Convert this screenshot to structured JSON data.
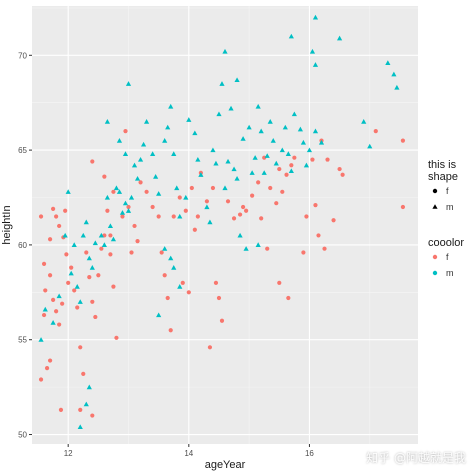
{
  "chart_data": {
    "type": "scatter",
    "xlabel": "ageYear",
    "ylabel": "heightIn",
    "xlim": [
      11.4,
      17.8
    ],
    "ylim": [
      49.5,
      72.6
    ],
    "x_ticks": [
      12,
      14,
      16
    ],
    "y_ticks": [
      50,
      55,
      60,
      65,
      70
    ],
    "grid": true,
    "background": "#EBEBEB",
    "legend_shape": {
      "title": "this is\nshape",
      "entries": [
        {
          "label": "f",
          "shape": "circle"
        },
        {
          "label": "m",
          "shape": "triangle"
        }
      ]
    },
    "legend_color": {
      "title": "cooolor",
      "entries": [
        {
          "label": "f",
          "color": "#F8766D"
        },
        {
          "label": "m",
          "color": "#00BFC4"
        }
      ]
    },
    "series": [
      {
        "name": "f",
        "shape": "circle",
        "color": "#F8766D",
        "points": [
          [
            11.55,
            52.9
          ],
          [
            11.65,
            53.5
          ],
          [
            11.7,
            53.9
          ],
          [
            11.6,
            56.3
          ],
          [
            11.62,
            57.6
          ],
          [
            11.55,
            61.5
          ],
          [
            11.7,
            60.3
          ],
          [
            11.75,
            61.9
          ],
          [
            11.8,
            61.5
          ],
          [
            11.85,
            61.0
          ],
          [
            11.6,
            59.0
          ],
          [
            11.7,
            58.4
          ],
          [
            11.75,
            57.1
          ],
          [
            11.8,
            56.5
          ],
          [
            11.85,
            55.8
          ],
          [
            11.9,
            56.9
          ],
          [
            11.95,
            61.8
          ],
          [
            11.92,
            60.4
          ],
          [
            11.97,
            59.5
          ],
          [
            12.0,
            58.0
          ],
          [
            11.88,
            51.3
          ],
          [
            12.05,
            58.8
          ],
          [
            12.1,
            57.6
          ],
          [
            12.15,
            56.7
          ],
          [
            12.2,
            54.6
          ],
          [
            12.25,
            53.2
          ],
          [
            12.3,
            59.6
          ],
          [
            12.35,
            58.3
          ],
          [
            12.4,
            57.0
          ],
          [
            12.45,
            56.2
          ],
          [
            12.5,
            58.4
          ],
          [
            12.55,
            59.8
          ],
          [
            12.6,
            60.5
          ],
          [
            12.65,
            61.8
          ],
          [
            12.7,
            59.5
          ],
          [
            12.75,
            57.8
          ],
          [
            12.8,
            55.1
          ],
          [
            12.4,
            64.4
          ],
          [
            12.6,
            63.6
          ],
          [
            12.75,
            62.8
          ],
          [
            12.9,
            61.5
          ],
          [
            13.0,
            62.0
          ],
          [
            13.05,
            59.6
          ],
          [
            12.2,
            51.3
          ],
          [
            12.4,
            51.0
          ],
          [
            12.95,
            66.0
          ],
          [
            13.1,
            61.0
          ],
          [
            13.15,
            60.2
          ],
          [
            13.2,
            63.3
          ],
          [
            13.3,
            62.8
          ],
          [
            13.4,
            62.0
          ],
          [
            13.5,
            61.5
          ],
          [
            13.55,
            59.6
          ],
          [
            13.6,
            58.4
          ],
          [
            13.65,
            57.2
          ],
          [
            13.7,
            55.5
          ],
          [
            13.75,
            61.5
          ],
          [
            13.85,
            62.5
          ],
          [
            13.95,
            61.8
          ],
          [
            14.05,
            63.0
          ],
          [
            14.1,
            60.8
          ],
          [
            14.15,
            61.5
          ],
          [
            14.3,
            62.3
          ],
          [
            14.4,
            63.0
          ],
          [
            14.45,
            58.0
          ],
          [
            14.5,
            57.2
          ],
          [
            14.55,
            56.0
          ],
          [
            14.35,
            54.6
          ],
          [
            14.65,
            62.3
          ],
          [
            14.75,
            61.4
          ],
          [
            14.85,
            61.6
          ],
          [
            14.9,
            62.0
          ],
          [
            14.95,
            61.8
          ],
          [
            15.05,
            62.6
          ],
          [
            15.15,
            63.3
          ],
          [
            15.2,
            61.4
          ],
          [
            15.25,
            64.6
          ],
          [
            15.35,
            63.0
          ],
          [
            15.45,
            62.2
          ],
          [
            15.5,
            64.0
          ],
          [
            15.55,
            62.8
          ],
          [
            15.62,
            63.7
          ],
          [
            15.7,
            64.2
          ],
          [
            15.75,
            64.6
          ],
          [
            15.3,
            59.8
          ],
          [
            15.5,
            58.0
          ],
          [
            15.65,
            57.2
          ],
          [
            15.9,
            59.6
          ],
          [
            15.95,
            61.5
          ],
          [
            16.05,
            64.5
          ],
          [
            16.1,
            62.1
          ],
          [
            16.15,
            60.5
          ],
          [
            16.2,
            65.5
          ],
          [
            16.3,
            64.5
          ],
          [
            16.25,
            59.8
          ],
          [
            16.4,
            61.3
          ],
          [
            16.5,
            64.0
          ],
          [
            16.55,
            63.7
          ],
          [
            17.1,
            66.0
          ],
          [
            17.55,
            65.5
          ],
          [
            17.55,
            62.0
          ],
          [
            12.7,
            60.5
          ],
          [
            13.9,
            58.0
          ],
          [
            14.0,
            57.5
          ],
          [
            14.2,
            63.8
          ]
        ]
      },
      {
        "name": "m",
        "shape": "triangle",
        "color": "#00BFC4",
        "points": [
          [
            11.55,
            55.0
          ],
          [
            11.62,
            56.6
          ],
          [
            11.75,
            55.9
          ],
          [
            11.85,
            57.3
          ],
          [
            11.95,
            60.5
          ],
          [
            12.0,
            62.8
          ],
          [
            12.05,
            58.5
          ],
          [
            12.1,
            60.0
          ],
          [
            12.15,
            57.8
          ],
          [
            12.2,
            57.0
          ],
          [
            12.25,
            60.5
          ],
          [
            12.3,
            61.2
          ],
          [
            12.35,
            59.3
          ],
          [
            12.4,
            58.8
          ],
          [
            12.45,
            60.1
          ],
          [
            12.55,
            60.5
          ],
          [
            12.6,
            60.0
          ],
          [
            12.65,
            62.5
          ],
          [
            12.7,
            61.0
          ],
          [
            12.75,
            60.3
          ],
          [
            12.2,
            50.4
          ],
          [
            12.3,
            51.6
          ],
          [
            12.35,
            52.5
          ],
          [
            12.8,
            63.0
          ],
          [
            12.85,
            62.8
          ],
          [
            12.9,
            61.7
          ],
          [
            12.95,
            62.2
          ],
          [
            13.0,
            61.8
          ],
          [
            13.05,
            62.5
          ],
          [
            13.1,
            64.2
          ],
          [
            13.15,
            63.5
          ],
          [
            13.2,
            64.5
          ],
          [
            13.0,
            68.5
          ],
          [
            12.65,
            66.5
          ],
          [
            12.85,
            65.5
          ],
          [
            12.95,
            64.8
          ],
          [
            13.25,
            65.3
          ],
          [
            13.3,
            66.5
          ],
          [
            13.4,
            64.8
          ],
          [
            13.45,
            63.6
          ],
          [
            13.5,
            62.7
          ],
          [
            13.6,
            65.5
          ],
          [
            13.65,
            66.2
          ],
          [
            13.7,
            67.3
          ],
          [
            13.75,
            64.8
          ],
          [
            13.8,
            63.0
          ],
          [
            13.85,
            61.5
          ],
          [
            13.95,
            62.5
          ],
          [
            14.0,
            66.6
          ],
          [
            14.1,
            65.9
          ],
          [
            14.15,
            64.5
          ],
          [
            14.2,
            63.7
          ],
          [
            14.3,
            62.0
          ],
          [
            14.35,
            61.2
          ],
          [
            14.4,
            65.0
          ],
          [
            14.45,
            64.3
          ],
          [
            14.5,
            66.9
          ],
          [
            14.55,
            68.5
          ],
          [
            14.6,
            63.0
          ],
          [
            14.65,
            64.4
          ],
          [
            14.7,
            67.2
          ],
          [
            14.75,
            64.0
          ],
          [
            14.8,
            63.5
          ],
          [
            14.85,
            60.5
          ],
          [
            14.9,
            65.6
          ],
          [
            15.0,
            66.2
          ],
          [
            15.05,
            63.8
          ],
          [
            15.1,
            64.6
          ],
          [
            15.15,
            67.3
          ],
          [
            15.2,
            66.0
          ],
          [
            15.25,
            63.8
          ],
          [
            15.3,
            64.7
          ],
          [
            15.35,
            66.5
          ],
          [
            15.4,
            65.5
          ],
          [
            15.45,
            64.3
          ],
          [
            15.55,
            65.0
          ],
          [
            15.6,
            66.2
          ],
          [
            15.65,
            64.8
          ],
          [
            15.7,
            63.9
          ],
          [
            15.75,
            66.9
          ],
          [
            15.85,
            66.1
          ],
          [
            15.9,
            65.4
          ],
          [
            15.95,
            64.2
          ],
          [
            16.0,
            65.0
          ],
          [
            16.1,
            66.0
          ],
          [
            16.2,
            65.4
          ],
          [
            16.1,
            69.5
          ],
          [
            15.7,
            71.0
          ],
          [
            16.05,
            70.2
          ],
          [
            16.1,
            72.0
          ],
          [
            16.5,
            70.9
          ],
          [
            16.9,
            66.5
          ],
          [
            17.3,
            69.6
          ],
          [
            17.4,
            69.0
          ],
          [
            17.45,
            68.3
          ],
          [
            17.0,
            65.2
          ],
          [
            13.5,
            56.3
          ],
          [
            13.6,
            59.8
          ],
          [
            13.7,
            59.3
          ],
          [
            13.75,
            58.8
          ],
          [
            14.6,
            70.2
          ],
          [
            14.8,
            68.7
          ],
          [
            14.95,
            59.8
          ],
          [
            15.15,
            60.0
          ],
          [
            13.85,
            57.8
          ]
        ]
      }
    ]
  },
  "watermark": "知乎 @阿越就是我"
}
